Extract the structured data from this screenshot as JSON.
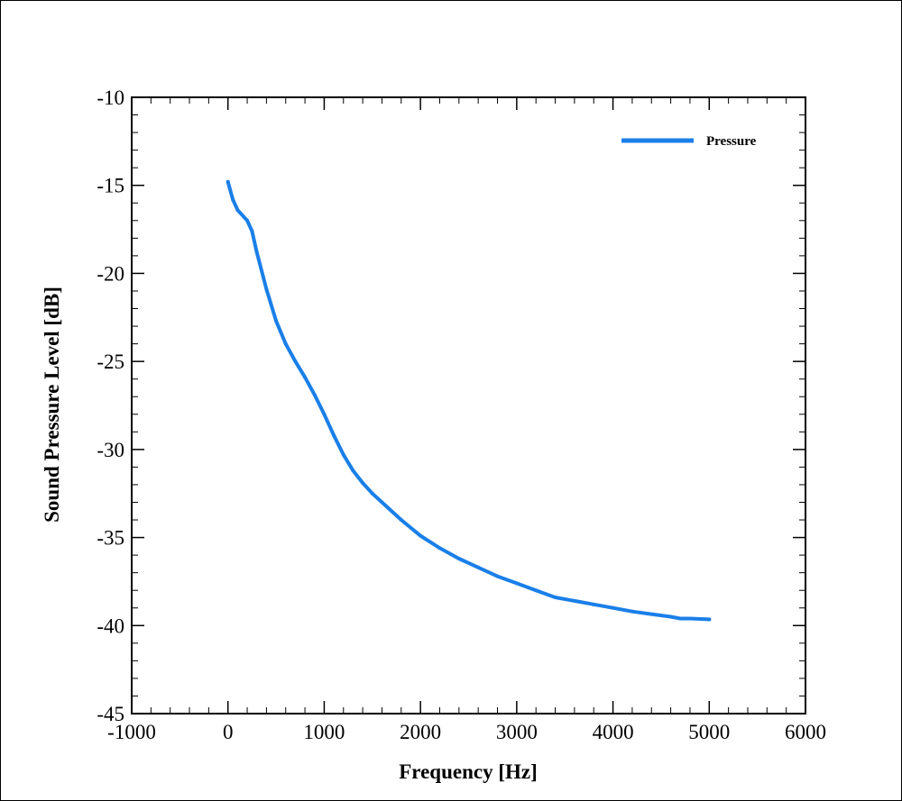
{
  "chart_data": {
    "type": "line",
    "xlabel": "Frequency [Hz]",
    "ylabel": "Sound Pressure Level [dB]",
    "xlim": [
      -1000,
      6000
    ],
    "ylim": [
      -45,
      -10
    ],
    "x_ticks": [
      -1000,
      0,
      1000,
      2000,
      3000,
      4000,
      5000,
      6000
    ],
    "y_ticks": [
      -10,
      -15,
      -20,
      -25,
      -30,
      -35,
      -40,
      -45
    ],
    "x_tick_labels": [
      "-1000",
      "0",
      "1000",
      "2000",
      "3000",
      "4000",
      "5000",
      "6000"
    ],
    "y_tick_labels": [
      "-10",
      "-15",
      "-20",
      "-25",
      "-30",
      "-35",
      "-40",
      "-45"
    ],
    "grid": false,
    "legend_position": "top-right",
    "series": [
      {
        "name": "Pressure",
        "color": "#1a7fe8",
        "x": [
          0,
          50,
          100,
          200,
          250,
          300,
          400,
          500,
          600,
          700,
          800,
          900,
          1000,
          1100,
          1200,
          1300,
          1400,
          1500,
          1600,
          1800,
          2000,
          2200,
          2400,
          2600,
          2800,
          3000,
          3200,
          3400,
          3600,
          3800,
          4000,
          4200,
          4400,
          4600,
          4700,
          4800,
          5000
        ],
        "y": [
          -14.8,
          -15.8,
          -16.4,
          -17.0,
          -17.6,
          -18.8,
          -20.9,
          -22.7,
          -24.0,
          -25.0,
          -25.9,
          -26.9,
          -28.0,
          -29.2,
          -30.3,
          -31.2,
          -31.9,
          -32.5,
          -33.0,
          -34.0,
          -34.9,
          -35.6,
          -36.2,
          -36.7,
          -37.2,
          -37.6,
          -38.0,
          -38.4,
          -38.6,
          -38.8,
          -39.0,
          -39.2,
          -39.35,
          -39.5,
          -39.6,
          -39.6,
          -39.65
        ]
      }
    ]
  }
}
